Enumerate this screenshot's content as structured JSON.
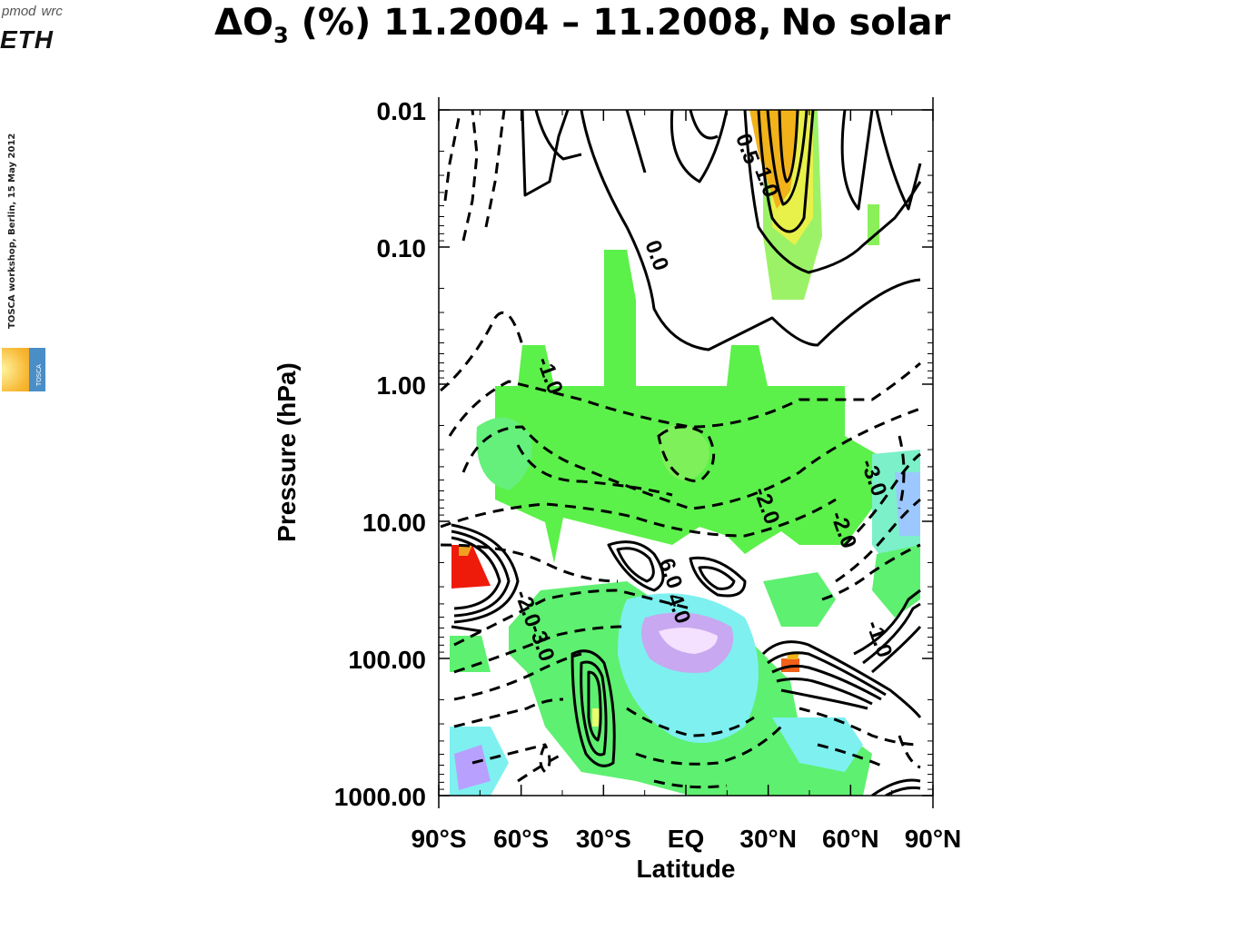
{
  "header": {
    "title_delta": "ΔO",
    "title_sub": "3",
    "title_rest": " (%) 11.2004 – 11.2008,",
    "title_tail": "No solar"
  },
  "logos": {
    "pmod": "pmod",
    "wrc": "wrc",
    "eth": "ETH",
    "tosca": "TOSCA"
  },
  "side_note": "TOSCA workshop, Berlin,  15 May 2012",
  "chart_data": {
    "type": "heatmap",
    "xlabel": "Latitude",
    "ylabel": "Pressure (hPa)",
    "x_ticks": [
      "90°S",
      "60°S",
      "30°S",
      "EQ",
      "30°N",
      "60°N",
      "90°N"
    ],
    "x_values": [
      -90,
      -60,
      -30,
      0,
      30,
      60,
      90
    ],
    "y_ticks": [
      "0.01",
      "0.10",
      "1.00",
      "10.00",
      "100.00",
      "1000.00"
    ],
    "y_values": [
      0.01,
      0.1,
      1,
      10,
      100,
      1000
    ],
    "y_scale": "log",
    "y_reversed": true,
    "xlim": [
      -90,
      90
    ],
    "ylim": [
      0.01,
      1000
    ],
    "contour_labels": [
      {
        "text": "0.5",
        "lat": 20,
        "p": 0.02
      },
      {
        "text": "1.0",
        "lat": 27,
        "p": 0.035
      },
      {
        "text": "0.0",
        "lat": -13,
        "p": 0.12
      },
      {
        "text": "-1.0",
        "lat": -52,
        "p": 0.9
      },
      {
        "text": "-2.0",
        "lat": 27,
        "p": 8
      },
      {
        "text": "-3.0",
        "lat": 66,
        "p": 5
      },
      {
        "text": "-2.0",
        "lat": 55,
        "p": 12
      },
      {
        "text": "6.0",
        "lat": -8,
        "p": 25
      },
      {
        "text": "4.0",
        "lat": -5,
        "p": 45
      },
      {
        "text": "-2.0",
        "lat": -60,
        "p": 45
      },
      {
        "text": "-3.0",
        "lat": -55,
        "p": 80
      },
      {
        "text": "-1.0",
        "lat": 68,
        "p": 75
      }
    ]
  }
}
